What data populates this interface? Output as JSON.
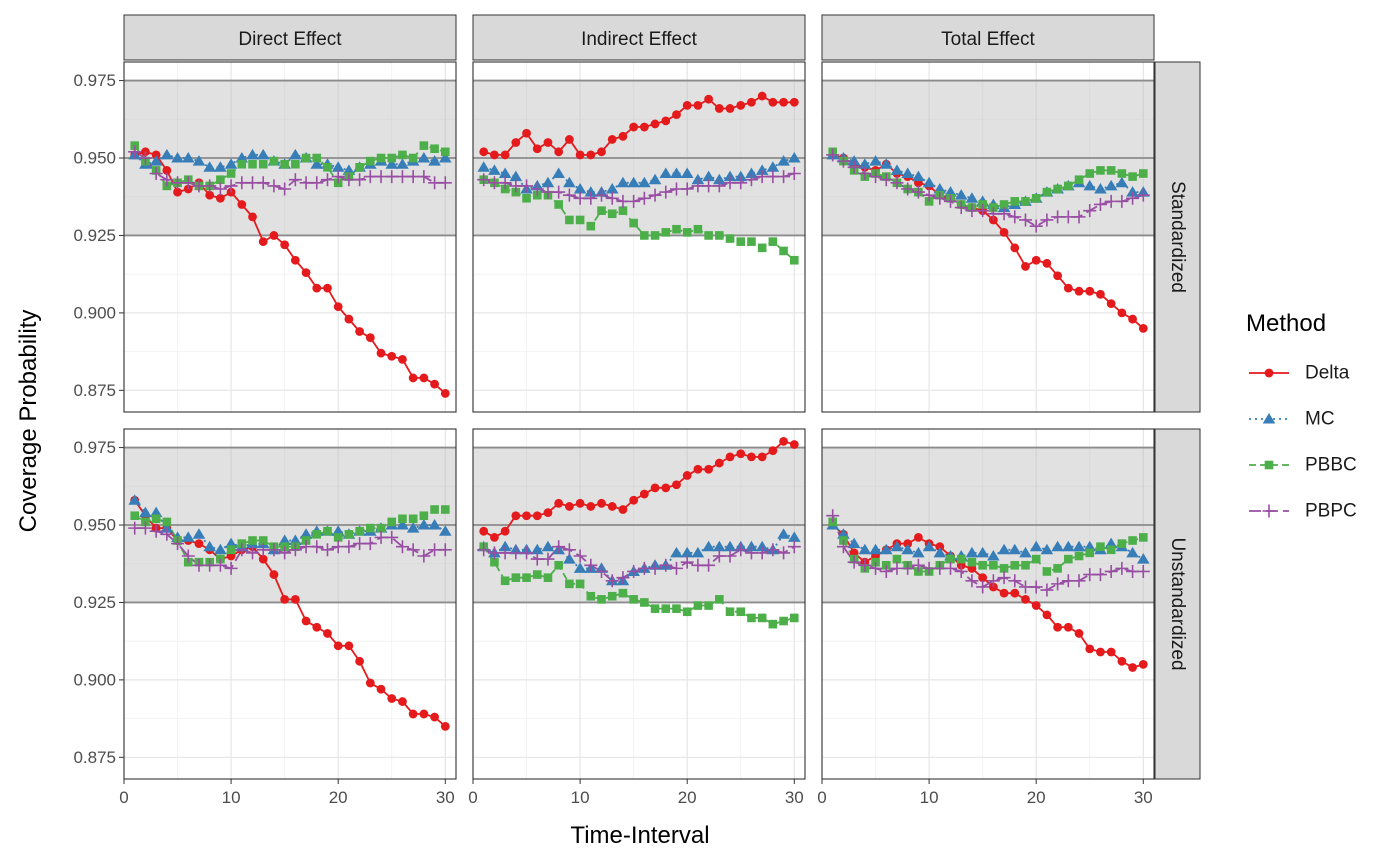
{
  "figure": {
    "ylabel": "Coverage Probability",
    "xlabel": "Time-Interval",
    "legend_title": "Method"
  },
  "chart_data": {
    "type": "line",
    "facet_columns": [
      "Direct Effect",
      "Indirect Effect",
      "Total Effect"
    ],
    "facet_rows": [
      "Standardized",
      "Unstandardized"
    ],
    "xlim": [
      0,
      31
    ],
    "ylim": [
      0.868,
      0.981
    ],
    "x_ticks": [
      0,
      10,
      20,
      30
    ],
    "y_ticks": [
      0.875,
      0.9,
      0.925,
      0.95,
      0.975
    ],
    "y_tick_labels": [
      "0.875",
      "0.900",
      "0.925",
      "0.950",
      "0.975"
    ],
    "reference_band": [
      0.925,
      0.975
    ],
    "reference_lines": [
      0.925,
      0.95,
      0.975
    ],
    "grid": true,
    "legend_position": "right",
    "x": [
      1,
      2,
      3,
      4,
      5,
      6,
      7,
      8,
      9,
      10,
      11,
      12,
      13,
      14,
      15,
      16,
      17,
      18,
      19,
      20,
      21,
      22,
      23,
      24,
      25,
      26,
      27,
      28,
      29,
      30
    ],
    "methods": [
      {
        "name": "Delta",
        "color": "#E41A1C",
        "shape": "circle",
        "dash": "solid"
      },
      {
        "name": "MC",
        "color": "#377EB8",
        "shape": "triangle",
        "dash": "dotted"
      },
      {
        "name": "PBBC",
        "color": "#4DAF4A",
        "shape": "square",
        "dash": "dashed"
      },
      {
        "name": "PBPC",
        "color": "#984EA3",
        "shape": "plus",
        "dash": "longdash"
      }
    ],
    "panels": [
      {
        "row": "Standardized",
        "column": "Direct Effect",
        "series": [
          {
            "name": "Delta",
            "values": [
              0.951,
              0.952,
              0.951,
              0.946,
              0.939,
              0.94,
              0.942,
              0.938,
              0.937,
              0.939,
              0.935,
              0.931,
              0.923,
              0.925,
              0.922,
              0.917,
              0.913,
              0.908,
              0.908,
              0.902,
              0.898,
              0.894,
              0.892,
              0.887,
              0.886,
              0.885,
              0.879,
              0.879,
              0.877,
              0.874
            ]
          },
          {
            "name": "MC",
            "values": [
              0.951,
              0.948,
              0.949,
              0.951,
              0.95,
              0.95,
              0.949,
              0.947,
              0.947,
              0.948,
              0.95,
              0.951,
              0.951,
              0.949,
              0.948,
              0.951,
              0.95,
              0.948,
              0.948,
              0.947,
              0.946,
              0.947,
              0.948,
              0.949,
              0.948,
              0.948,
              0.949,
              0.95,
              0.949,
              0.95
            ]
          },
          {
            "name": "PBBC",
            "values": [
              0.954,
              0.949,
              0.946,
              0.941,
              0.942,
              0.943,
              0.941,
              0.941,
              0.943,
              0.945,
              0.948,
              0.948,
              0.948,
              0.949,
              0.948,
              0.948,
              0.95,
              0.95,
              0.947,
              0.942,
              0.944,
              0.947,
              0.949,
              0.95,
              0.95,
              0.951,
              0.95,
              0.954,
              0.953,
              0.952
            ]
          },
          {
            "name": "PBPC",
            "values": [
              0.952,
              0.95,
              0.945,
              0.943,
              0.942,
              0.942,
              0.941,
              0.941,
              0.94,
              0.941,
              0.942,
              0.942,
              0.942,
              0.941,
              0.94,
              0.943,
              0.942,
              0.942,
              0.943,
              0.944,
              0.943,
              0.943,
              0.944,
              0.944,
              0.944,
              0.944,
              0.944,
              0.944,
              0.942,
              0.942
            ]
          }
        ]
      },
      {
        "row": "Standardized",
        "column": "Indirect Effect",
        "series": [
          {
            "name": "Delta",
            "values": [
              0.952,
              0.951,
              0.951,
              0.955,
              0.958,
              0.953,
              0.955,
              0.952,
              0.956,
              0.951,
              0.951,
              0.952,
              0.956,
              0.957,
              0.96,
              0.96,
              0.961,
              0.962,
              0.964,
              0.967,
              0.967,
              0.969,
              0.966,
              0.966,
              0.967,
              0.968,
              0.97,
              0.968,
              0.968,
              0.968
            ]
          },
          {
            "name": "MC",
            "values": [
              0.947,
              0.946,
              0.945,
              0.944,
              0.94,
              0.941,
              0.942,
              0.945,
              0.942,
              0.94,
              0.939,
              0.939,
              0.94,
              0.942,
              0.942,
              0.942,
              0.943,
              0.945,
              0.945,
              0.945,
              0.943,
              0.944,
              0.943,
              0.944,
              0.944,
              0.945,
              0.946,
              0.947,
              0.949,
              0.95
            ]
          },
          {
            "name": "PBBC",
            "values": [
              0.943,
              0.942,
              0.94,
              0.939,
              0.937,
              0.938,
              0.938,
              0.935,
              0.93,
              0.93,
              0.928,
              0.933,
              0.932,
              0.933,
              0.929,
              0.925,
              0.925,
              0.926,
              0.927,
              0.926,
              0.927,
              0.925,
              0.925,
              0.924,
              0.923,
              0.923,
              0.921,
              0.923,
              0.92,
              0.917
            ]
          },
          {
            "name": "PBPC",
            "values": [
              0.943,
              0.942,
              0.942,
              0.941,
              0.941,
              0.94,
              0.939,
              0.939,
              0.938,
              0.937,
              0.937,
              0.938,
              0.937,
              0.936,
              0.936,
              0.937,
              0.938,
              0.939,
              0.94,
              0.94,
              0.941,
              0.941,
              0.941,
              0.942,
              0.942,
              0.943,
              0.944,
              0.944,
              0.944,
              0.945
            ]
          }
        ]
      },
      {
        "row": "Standardized",
        "column": "Total Effect",
        "series": [
          {
            "name": "Delta",
            "values": [
              0.951,
              0.95,
              0.948,
              0.947,
              0.946,
              0.948,
              0.945,
              0.944,
              0.942,
              0.941,
              0.938,
              0.937,
              0.935,
              0.934,
              0.933,
              0.93,
              0.926,
              0.921,
              0.915,
              0.917,
              0.916,
              0.912,
              0.908,
              0.907,
              0.907,
              0.906,
              0.903,
              0.9,
              0.898,
              0.895
            ]
          },
          {
            "name": "MC",
            "values": [
              0.951,
              0.95,
              0.949,
              0.948,
              0.949,
              0.948,
              0.946,
              0.945,
              0.944,
              0.942,
              0.94,
              0.939,
              0.938,
              0.937,
              0.936,
              0.935,
              0.934,
              0.935,
              0.936,
              0.937,
              0.939,
              0.94,
              0.941,
              0.942,
              0.941,
              0.94,
              0.941,
              0.942,
              0.939,
              0.939
            ]
          },
          {
            "name": "PBBC",
            "values": [
              0.952,
              0.949,
              0.946,
              0.944,
              0.945,
              0.944,
              0.942,
              0.94,
              0.939,
              0.936,
              0.938,
              0.937,
              0.935,
              0.934,
              0.935,
              0.934,
              0.935,
              0.936,
              0.936,
              0.937,
              0.939,
              0.94,
              0.941,
              0.943,
              0.945,
              0.946,
              0.946,
              0.945,
              0.944,
              0.945
            ]
          },
          {
            "name": "PBPC",
            "values": [
              0.951,
              0.949,
              0.947,
              0.945,
              0.944,
              0.943,
              0.942,
              0.94,
              0.939,
              0.938,
              0.937,
              0.936,
              0.934,
              0.933,
              0.933,
              0.932,
              0.932,
              0.931,
              0.93,
              0.928,
              0.93,
              0.931,
              0.931,
              0.931,
              0.933,
              0.935,
              0.936,
              0.936,
              0.937,
              0.938
            ]
          }
        ]
      },
      {
        "row": "Unstandardized",
        "column": "Direct Effect",
        "series": [
          {
            "name": "Delta",
            "values": [
              0.958,
              0.953,
              0.949,
              0.949,
              0.945,
              0.945,
              0.944,
              0.942,
              0.939,
              0.94,
              0.942,
              0.943,
              0.939,
              0.934,
              0.926,
              0.926,
              0.919,
              0.917,
              0.915,
              0.911,
              0.911,
              0.906,
              0.899,
              0.897,
              0.894,
              0.893,
              0.889,
              0.889,
              0.888,
              0.885
            ]
          },
          {
            "name": "MC",
            "values": [
              0.958,
              0.954,
              0.954,
              0.949,
              0.946,
              0.946,
              0.947,
              0.943,
              0.942,
              0.944,
              0.943,
              0.944,
              0.944,
              0.942,
              0.945,
              0.945,
              0.947,
              0.948,
              0.948,
              0.948,
              0.947,
              0.948,
              0.948,
              0.949,
              0.95,
              0.95,
              0.949,
              0.95,
              0.95,
              0.948
            ]
          },
          {
            "name": "PBBC",
            "values": [
              0.953,
              0.951,
              0.952,
              0.951,
              0.945,
              0.938,
              0.938,
              0.938,
              0.939,
              0.942,
              0.944,
              0.945,
              0.945,
              0.943,
              0.943,
              0.943,
              0.945,
              0.947,
              0.948,
              0.946,
              0.947,
              0.948,
              0.949,
              0.949,
              0.951,
              0.952,
              0.952,
              0.953,
              0.955,
              0.955
            ]
          },
          {
            "name": "PBPC",
            "values": [
              0.949,
              0.949,
              0.948,
              0.947,
              0.944,
              0.94,
              0.937,
              0.937,
              0.937,
              0.936,
              0.942,
              0.941,
              0.942,
              0.942,
              0.941,
              0.942,
              0.943,
              0.943,
              0.942,
              0.943,
              0.943,
              0.944,
              0.944,
              0.946,
              0.946,
              0.943,
              0.942,
              0.94,
              0.942,
              0.942
            ]
          }
        ]
      },
      {
        "row": "Unstandardized",
        "column": "Indirect Effect",
        "series": [
          {
            "name": "Delta",
            "values": [
              0.948,
              0.946,
              0.948,
              0.953,
              0.953,
              0.953,
              0.954,
              0.957,
              0.956,
              0.957,
              0.956,
              0.957,
              0.956,
              0.955,
              0.958,
              0.96,
              0.962,
              0.962,
              0.963,
              0.966,
              0.968,
              0.968,
              0.97,
              0.972,
              0.973,
              0.972,
              0.972,
              0.974,
              0.977,
              0.976
            ]
          },
          {
            "name": "MC",
            "values": [
              0.943,
              0.941,
              0.943,
              0.942,
              0.942,
              0.942,
              0.943,
              0.942,
              0.939,
              0.936,
              0.936,
              0.936,
              0.932,
              0.932,
              0.935,
              0.936,
              0.937,
              0.937,
              0.941,
              0.941,
              0.941,
              0.943,
              0.943,
              0.943,
              0.943,
              0.943,
              0.943,
              0.942,
              0.947,
              0.946
            ]
          },
          {
            "name": "PBBC",
            "values": [
              0.943,
              0.938,
              0.932,
              0.933,
              0.933,
              0.934,
              0.933,
              0.937,
              0.931,
              0.931,
              0.927,
              0.926,
              0.927,
              0.928,
              0.926,
              0.925,
              0.923,
              0.923,
              0.923,
              0.922,
              0.924,
              0.924,
              0.926,
              0.922,
              0.922,
              0.92,
              0.92,
              0.918,
              0.919,
              0.92
            ]
          },
          {
            "name": "PBPC",
            "values": [
              0.942,
              0.941,
              0.941,
              0.941,
              0.941,
              0.939,
              0.939,
              0.943,
              0.942,
              0.94,
              0.937,
              0.935,
              0.932,
              0.933,
              0.935,
              0.936,
              0.936,
              0.937,
              0.936,
              0.938,
              0.937,
              0.937,
              0.94,
              0.94,
              0.942,
              0.941,
              0.941,
              0.942,
              0.941,
              0.943
            ]
          }
        ]
      },
      {
        "row": "Unstandardized",
        "column": "Total Effect",
        "series": [
          {
            "name": "Delta",
            "values": [
              0.95,
              0.947,
              0.941,
              0.938,
              0.94,
              0.942,
              0.944,
              0.944,
              0.946,
              0.944,
              0.943,
              0.94,
              0.937,
              0.936,
              0.933,
              0.93,
              0.928,
              0.928,
              0.926,
              0.924,
              0.921,
              0.917,
              0.917,
              0.915,
              0.91,
              0.909,
              0.909,
              0.906,
              0.904,
              0.905
            ]
          },
          {
            "name": "MC",
            "values": [
              0.95,
              0.947,
              0.944,
              0.942,
              0.942,
              0.942,
              0.943,
              0.942,
              0.941,
              0.943,
              0.941,
              0.94,
              0.94,
              0.941,
              0.941,
              0.94,
              0.942,
              0.942,
              0.941,
              0.943,
              0.942,
              0.943,
              0.943,
              0.943,
              0.943,
              0.942,
              0.944,
              0.943,
              0.941,
              0.939
            ]
          },
          {
            "name": "PBBC",
            "values": [
              0.951,
              0.945,
              0.939,
              0.936,
              0.938,
              0.937,
              0.939,
              0.937,
              0.935,
              0.935,
              0.937,
              0.939,
              0.939,
              0.938,
              0.937,
              0.937,
              0.936,
              0.937,
              0.937,
              0.939,
              0.935,
              0.936,
              0.939,
              0.94,
              0.941,
              0.943,
              0.942,
              0.944,
              0.945,
              0.946
            ]
          },
          {
            "name": "PBPC",
            "values": [
              0.953,
              0.943,
              0.938,
              0.937,
              0.936,
              0.935,
              0.936,
              0.936,
              0.937,
              0.936,
              0.936,
              0.936,
              0.935,
              0.932,
              0.93,
              0.932,
              0.933,
              0.932,
              0.93,
              0.93,
              0.929,
              0.931,
              0.932,
              0.932,
              0.934,
              0.934,
              0.935,
              0.936,
              0.935,
              0.935
            ]
          }
        ]
      }
    ]
  }
}
